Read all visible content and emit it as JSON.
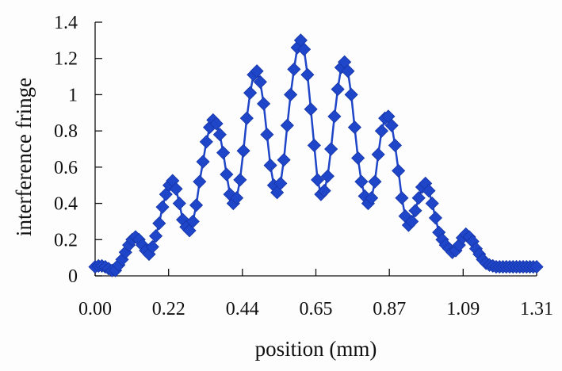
{
  "chart_data": {
    "type": "line",
    "title": "",
    "xlabel": "position (mm)",
    "ylabel": "interference fringe",
    "xlim": [
      0,
      1.31
    ],
    "ylim": [
      0,
      1.4
    ],
    "xticks": [
      0,
      0.218,
      0.437,
      0.655,
      0.873,
      1.092,
      1.31
    ],
    "xtick_labels": [
      "0.00",
      "0.22",
      "0.44",
      "0.65",
      "0.87",
      "1.09",
      "1.31"
    ],
    "yticks": [
      0,
      0.2,
      0.4,
      0.6,
      0.8,
      1,
      1.2,
      1.4
    ],
    "ytick_labels": [
      "0",
      "0.2",
      "0.4",
      "0.6",
      "0.8",
      "1",
      "1.2",
      "1.4"
    ],
    "grid": false,
    "legend": "none",
    "marker": "diamond",
    "series_color": "#1f45c8",
    "series": [
      {
        "name": "",
        "x": [
          0.0,
          0.01,
          0.02,
          0.03,
          0.04,
          0.05,
          0.06,
          0.07,
          0.08,
          0.09,
          0.1,
          0.11,
          0.12,
          0.13,
          0.14,
          0.15,
          0.16,
          0.17,
          0.18,
          0.19,
          0.2,
          0.21,
          0.22,
          0.23,
          0.24,
          0.25,
          0.26,
          0.27,
          0.28,
          0.29,
          0.3,
          0.31,
          0.32,
          0.33,
          0.34,
          0.35,
          0.36,
          0.37,
          0.38,
          0.39,
          0.4,
          0.41,
          0.42,
          0.43,
          0.44,
          0.45,
          0.46,
          0.47,
          0.48,
          0.49,
          0.5,
          0.51,
          0.52,
          0.53,
          0.54,
          0.55,
          0.56,
          0.57,
          0.58,
          0.59,
          0.6,
          0.61,
          0.62,
          0.63,
          0.64,
          0.65,
          0.66,
          0.67,
          0.68,
          0.69,
          0.7,
          0.71,
          0.72,
          0.73,
          0.74,
          0.75,
          0.76,
          0.77,
          0.78,
          0.79,
          0.8,
          0.81,
          0.82,
          0.83,
          0.84,
          0.85,
          0.86,
          0.87,
          0.88,
          0.89,
          0.9,
          0.91,
          0.92,
          0.93,
          0.94,
          0.95,
          0.96,
          0.97,
          0.98,
          0.99,
          1.0,
          1.01,
          1.02,
          1.03,
          1.04,
          1.05,
          1.06,
          1.07,
          1.08,
          1.09,
          1.1,
          1.11,
          1.12,
          1.13,
          1.14,
          1.15,
          1.16,
          1.17,
          1.18,
          1.19,
          1.2,
          1.21,
          1.22,
          1.23,
          1.24,
          1.25,
          1.26,
          1.27,
          1.28,
          1.29,
          1.3,
          1.31
        ],
        "values": [
          0.05,
          0.055,
          0.055,
          0.05,
          0.04,
          0.03,
          0.03,
          0.06,
          0.09,
          0.13,
          0.17,
          0.2,
          0.215,
          0.2,
          0.17,
          0.14,
          0.12,
          0.16,
          0.22,
          0.29,
          0.38,
          0.45,
          0.5,
          0.525,
          0.48,
          0.4,
          0.31,
          0.27,
          0.25,
          0.3,
          0.39,
          0.52,
          0.63,
          0.74,
          0.82,
          0.86,
          0.84,
          0.78,
          0.68,
          0.56,
          0.45,
          0.4,
          0.43,
          0.53,
          0.69,
          0.87,
          1.01,
          1.11,
          1.13,
          1.07,
          0.95,
          0.78,
          0.61,
          0.5,
          0.46,
          0.51,
          0.64,
          0.83,
          1.0,
          1.14,
          1.26,
          1.3,
          1.25,
          1.11,
          0.92,
          0.72,
          0.53,
          0.45,
          0.47,
          0.55,
          0.7,
          0.88,
          1.03,
          1.15,
          1.18,
          1.13,
          1.0,
          0.82,
          0.65,
          0.52,
          0.44,
          0.4,
          0.43,
          0.52,
          0.67,
          0.8,
          0.87,
          0.88,
          0.83,
          0.72,
          0.58,
          0.43,
          0.33,
          0.28,
          0.3,
          0.36,
          0.43,
          0.49,
          0.51,
          0.47,
          0.4,
          0.32,
          0.24,
          0.2,
          0.17,
          0.15,
          0.13,
          0.14,
          0.17,
          0.21,
          0.23,
          0.215,
          0.19,
          0.15,
          0.12,
          0.09,
          0.07,
          0.06,
          0.055,
          0.05,
          0.05,
          0.05,
          0.05,
          0.05,
          0.05,
          0.05,
          0.05,
          0.05,
          0.05,
          0.05,
          0.05,
          0.05
        ]
      }
    ]
  }
}
